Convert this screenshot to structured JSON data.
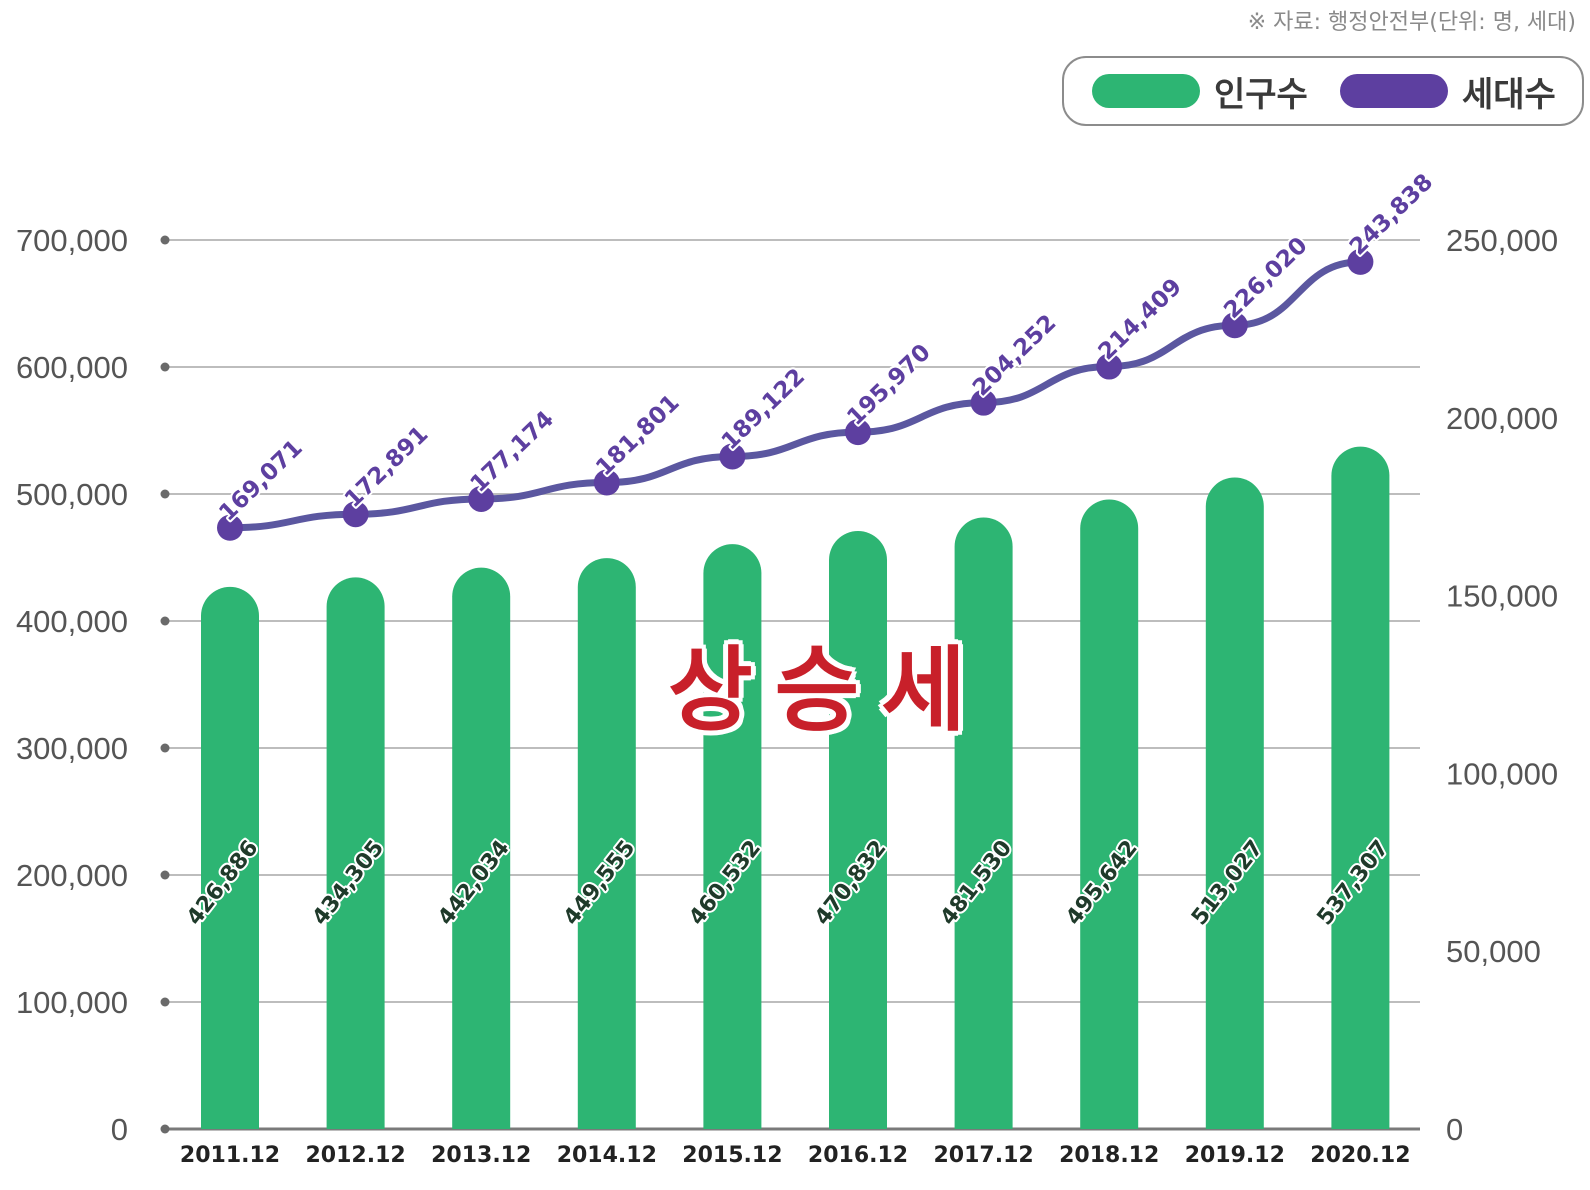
{
  "source_note": "※ 자료: 행정안전부(단위: 명, 세대)",
  "annotation": "상승세",
  "colors": {
    "population": "#2db573",
    "households": "#5d3fa0",
    "grid": "#bdbdbd"
  },
  "legend": {
    "population_label": "인구수",
    "households_label": "세대수"
  },
  "chart_data": {
    "type": "bar",
    "categories": [
      "2011.12",
      "2012.12",
      "2013.12",
      "2014.12",
      "2015.12",
      "2016.12",
      "2017.12",
      "2018.12",
      "2019.12",
      "2020.12"
    ],
    "series": [
      {
        "name": "인구수",
        "type": "bar",
        "axis": "left",
        "values": [
          426886,
          434305,
          442034,
          449555,
          460532,
          470832,
          481530,
          495642,
          513027,
          537307
        ],
        "labels": [
          "426,886",
          "434,305",
          "442,034",
          "449,555",
          "460,532",
          "470,832",
          "481,530",
          "495,642",
          "513,027",
          "537,307"
        ]
      },
      {
        "name": "세대수",
        "type": "line",
        "axis": "right",
        "values": [
          169071,
          172891,
          177174,
          181801,
          189122,
          195970,
          204252,
          214409,
          226020,
          243838
        ],
        "labels": [
          "169,071",
          "172,891",
          "177,174",
          "181,801",
          "189,122",
          "195,970",
          "204,252",
          "214,409",
          "226,020",
          "243,838"
        ]
      }
    ],
    "left_axis": {
      "ylim": [
        0,
        700000
      ],
      "ticks": [
        "0",
        "100,000",
        "200,000",
        "300,000",
        "400,000",
        "500,000",
        "600,000",
        "700,000"
      ]
    },
    "right_axis": {
      "ylim": [
        0,
        250000
      ],
      "ticks": [
        "0",
        "50,000",
        "100,000",
        "150,000",
        "200,000",
        "250,000"
      ]
    },
    "grid": true,
    "legend_position": "top-right"
  }
}
